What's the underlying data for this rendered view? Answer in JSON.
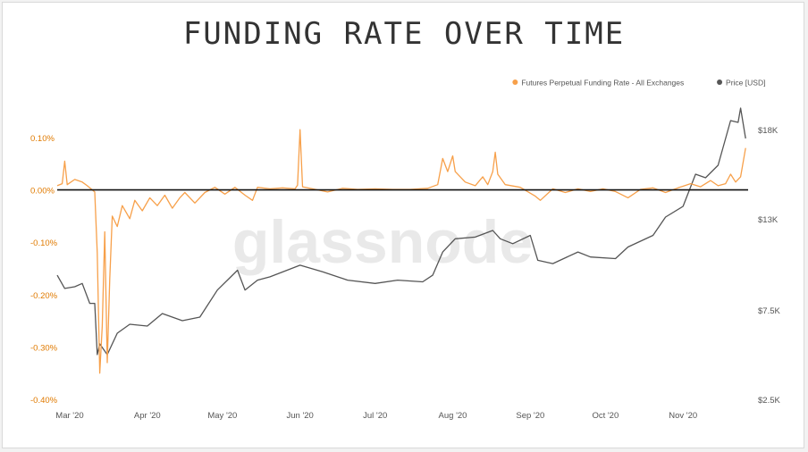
{
  "title": "FUNDING RATE OVER TIME",
  "watermark": "glassnode",
  "colors": {
    "funding": "#f7a04a",
    "price": "#555555",
    "axis_left": "#e07a00",
    "zero_line": "#111111"
  },
  "chart_data": {
    "type": "line",
    "legend_position": "top-right",
    "grid": false,
    "xlim": [
      "2020-02-25",
      "2020-11-27"
    ],
    "x_ticks": [
      {
        "label": "Mar '20",
        "date": "2020-03-01"
      },
      {
        "label": "Apr '20",
        "date": "2020-04-01"
      },
      {
        "label": "May '20",
        "date": "2020-05-01"
      },
      {
        "label": "Jun '20",
        "date": "2020-06-01"
      },
      {
        "label": "Jul '20",
        "date": "2020-07-01"
      },
      {
        "label": "Aug '20",
        "date": "2020-08-01"
      },
      {
        "label": "Sep '20",
        "date": "2020-09-01"
      },
      {
        "label": "Oct '20",
        "date": "2020-10-01"
      },
      {
        "label": "Nov '20",
        "date": "2020-11-01"
      }
    ],
    "y_left": {
      "unit": "%",
      "ylim": [
        -0.4,
        0.1
      ],
      "ticks": [
        {
          "label": "0.10%",
          "value": 0.1
        },
        {
          "label": "0.00%",
          "value": 0.0
        },
        {
          "label": "-0.10%",
          "value": -0.1
        },
        {
          "label": "-0.20%",
          "value": -0.2
        },
        {
          "label": "-0.30%",
          "value": -0.3
        },
        {
          "label": "-0.40%",
          "value": -0.4
        }
      ]
    },
    "y_right": {
      "unit": "USD",
      "ticks": [
        {
          "label": "$18K",
          "value": 18000
        },
        {
          "label": "$13K",
          "value": 13000
        },
        {
          "label": "$7.5K",
          "value": 7500
        },
        {
          "label": "$2.5K",
          "value": 2500
        }
      ]
    },
    "series": [
      {
        "name": "Futures Perpetual Funding Rate - All Exchanges",
        "axis": "left",
        "color": "#f7a04a",
        "points": [
          [
            "2020-02-25",
            0.008
          ],
          [
            "2020-02-27",
            0.012
          ],
          [
            "2020-02-28",
            0.055
          ],
          [
            "2020-02-29",
            0.01
          ],
          [
            "2020-03-03",
            0.02
          ],
          [
            "2020-03-06",
            0.015
          ],
          [
            "2020-03-08",
            0.008
          ],
          [
            "2020-03-11",
            -0.004
          ],
          [
            "2020-03-12",
            -0.12
          ],
          [
            "2020-03-13",
            -0.35
          ],
          [
            "2020-03-14",
            -0.26
          ],
          [
            "2020-03-15",
            -0.08
          ],
          [
            "2020-03-16",
            -0.33
          ],
          [
            "2020-03-17",
            -0.17
          ],
          [
            "2020-03-18",
            -0.05
          ],
          [
            "2020-03-20",
            -0.07
          ],
          [
            "2020-03-22",
            -0.03
          ],
          [
            "2020-03-25",
            -0.055
          ],
          [
            "2020-03-27",
            -0.02
          ],
          [
            "2020-03-30",
            -0.04
          ],
          [
            "2020-04-02",
            -0.015
          ],
          [
            "2020-04-05",
            -0.03
          ],
          [
            "2020-04-08",
            -0.01
          ],
          [
            "2020-04-11",
            -0.035
          ],
          [
            "2020-04-14",
            -0.015
          ],
          [
            "2020-04-16",
            -0.005
          ],
          [
            "2020-04-20",
            -0.025
          ],
          [
            "2020-04-24",
            -0.005
          ],
          [
            "2020-04-28",
            0.005
          ],
          [
            "2020-05-02",
            -0.008
          ],
          [
            "2020-05-06",
            0.005
          ],
          [
            "2020-05-10",
            -0.01
          ],
          [
            "2020-05-13",
            -0.02
          ],
          [
            "2020-05-15",
            0.005
          ],
          [
            "2020-05-20",
            0.002
          ],
          [
            "2020-05-25",
            0.004
          ],
          [
            "2020-05-30",
            0.002
          ],
          [
            "2020-05-31",
            0.009
          ],
          [
            "2020-06-01",
            0.115
          ],
          [
            "2020-06-02",
            0.006
          ],
          [
            "2020-06-06",
            0.002
          ],
          [
            "2020-06-12",
            -0.004
          ],
          [
            "2020-06-18",
            0.003
          ],
          [
            "2020-06-24",
            0.001
          ],
          [
            "2020-07-01",
            0.002
          ],
          [
            "2020-07-08",
            0.001
          ],
          [
            "2020-07-15",
            0.001
          ],
          [
            "2020-07-22",
            0.003
          ],
          [
            "2020-07-26",
            0.01
          ],
          [
            "2020-07-28",
            0.06
          ],
          [
            "2020-07-30",
            0.035
          ],
          [
            "2020-08-01",
            0.065
          ],
          [
            "2020-08-02",
            0.035
          ],
          [
            "2020-08-04",
            0.025
          ],
          [
            "2020-08-06",
            0.015
          ],
          [
            "2020-08-10",
            0.008
          ],
          [
            "2020-08-13",
            0.025
          ],
          [
            "2020-08-15",
            0.01
          ],
          [
            "2020-08-17",
            0.035
          ],
          [
            "2020-08-18",
            0.072
          ],
          [
            "2020-08-19",
            0.03
          ],
          [
            "2020-08-22",
            0.01
          ],
          [
            "2020-08-28",
            0.005
          ],
          [
            "2020-09-03",
            -0.012
          ],
          [
            "2020-09-05",
            -0.02
          ],
          [
            "2020-09-10",
            0.002
          ],
          [
            "2020-09-15",
            -0.005
          ],
          [
            "2020-09-20",
            0.002
          ],
          [
            "2020-09-25",
            -0.003
          ],
          [
            "2020-09-30",
            0.002
          ],
          [
            "2020-10-05",
            -0.003
          ],
          [
            "2020-10-10",
            -0.015
          ],
          [
            "2020-10-15",
            0.001
          ],
          [
            "2020-10-20",
            0.004
          ],
          [
            "2020-10-25",
            -0.005
          ],
          [
            "2020-10-30",
            0.004
          ],
          [
            "2020-11-04",
            0.012
          ],
          [
            "2020-11-08",
            0.006
          ],
          [
            "2020-11-12",
            0.018
          ],
          [
            "2020-11-15",
            0.008
          ],
          [
            "2020-11-18",
            0.012
          ],
          [
            "2020-11-20",
            0.03
          ],
          [
            "2020-11-22",
            0.015
          ],
          [
            "2020-11-24",
            0.025
          ],
          [
            "2020-11-26",
            0.08
          ]
        ]
      },
      {
        "name": "Price [USD]",
        "axis": "right",
        "color": "#555555",
        "points": [
          [
            "2020-02-25",
            9600
          ],
          [
            "2020-02-28",
            8800
          ],
          [
            "2020-03-03",
            8900
          ],
          [
            "2020-03-06",
            9100
          ],
          [
            "2020-03-09",
            7900
          ],
          [
            "2020-03-11",
            7900
          ],
          [
            "2020-03-12",
            5000
          ],
          [
            "2020-03-13",
            5600
          ],
          [
            "2020-03-16",
            5000
          ],
          [
            "2020-03-20",
            6200
          ],
          [
            "2020-03-25",
            6700
          ],
          [
            "2020-04-01",
            6600
          ],
          [
            "2020-04-07",
            7300
          ],
          [
            "2020-04-15",
            6900
          ],
          [
            "2020-04-22",
            7100
          ],
          [
            "2020-04-29",
            8700
          ],
          [
            "2020-05-07",
            9900
          ],
          [
            "2020-05-10",
            8700
          ],
          [
            "2020-05-15",
            9300
          ],
          [
            "2020-05-20",
            9500
          ],
          [
            "2020-06-01",
            10200
          ],
          [
            "2020-06-10",
            9800
          ],
          [
            "2020-06-20",
            9300
          ],
          [
            "2020-07-01",
            9100
          ],
          [
            "2020-07-10",
            9300
          ],
          [
            "2020-07-20",
            9200
          ],
          [
            "2020-07-24",
            9600
          ],
          [
            "2020-07-28",
            11000
          ],
          [
            "2020-08-02",
            11800
          ],
          [
            "2020-08-10",
            11900
          ],
          [
            "2020-08-17",
            12300
          ],
          [
            "2020-08-20",
            11800
          ],
          [
            "2020-08-25",
            11500
          ],
          [
            "2020-09-01",
            12000
          ],
          [
            "2020-09-04",
            10500
          ],
          [
            "2020-09-10",
            10300
          ],
          [
            "2020-09-20",
            11000
          ],
          [
            "2020-09-25",
            10700
          ],
          [
            "2020-10-05",
            10600
          ],
          [
            "2020-10-10",
            11300
          ],
          [
            "2020-10-20",
            12000
          ],
          [
            "2020-10-25",
            13100
          ],
          [
            "2020-11-01",
            13700
          ],
          [
            "2020-11-06",
            15500
          ],
          [
            "2020-11-10",
            15300
          ],
          [
            "2020-11-15",
            16000
          ],
          [
            "2020-11-20",
            18500
          ],
          [
            "2020-11-23",
            18400
          ],
          [
            "2020-11-24",
            19200
          ],
          [
            "2020-11-26",
            17500
          ]
        ]
      }
    ]
  }
}
